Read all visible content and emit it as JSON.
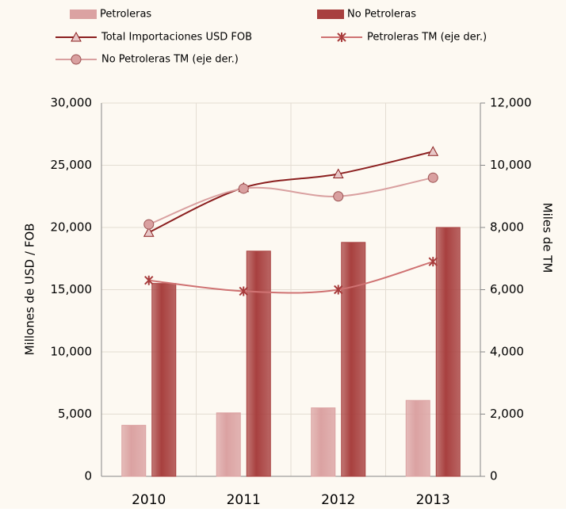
{
  "chart_data": {
    "type": "bar-line",
    "categories": [
      "2010",
      "2011",
      "2012",
      "2013"
    ],
    "series": [
      {
        "name": "Petroleras",
        "type": "bar",
        "color": "#dba2a2",
        "values": [
          4100,
          5100,
          5500,
          6100
        ]
      },
      {
        "name": "No Petroleras",
        "type": "bar",
        "color": "#a8403f",
        "values": [
          15500,
          18100,
          18800,
          20000
        ]
      },
      {
        "name": "Total Importaciones USD FOB",
        "type": "line",
        "marker": "triangle",
        "color": "#8b1f1f",
        "values": [
          19600,
          23200,
          24300,
          26100
        ]
      },
      {
        "name": "Petroleras TM (eje der.)",
        "type": "line",
        "marker": "x",
        "axis": "y2",
        "color": "#cf7272",
        "values": [
          6300,
          5950,
          6000,
          6900
        ]
      },
      {
        "name": "No Petroleras TM (eje der.)",
        "type": "line",
        "marker": "circle",
        "axis": "y2",
        "color": "#d9a0a0",
        "values": [
          8100,
          9250,
          9000,
          9600
        ]
      }
    ],
    "y_label": "Millones de USD / FOB",
    "y2_label": "Miles de  TM",
    "ylim": [
      0,
      30000
    ],
    "yticks": [
      0,
      {
        "value": 5000,
        "label": "5,000"
      },
      {
        "value": 10000,
        "label": "10,000"
      },
      {
        "value": 15000,
        "label": "15,000"
      },
      {
        "value": 20000,
        "label": "20,000"
      },
      {
        "value": 25000,
        "label": "25,000"
      },
      {
        "value": 30000,
        "label": "30,000"
      }
    ],
    "y2lim": [
      0,
      12000
    ],
    "y2ticks": [
      0,
      {
        "value": 2000,
        "label": "2,000"
      },
      {
        "value": 4000,
        "label": "4,000"
      },
      {
        "value": 6000,
        "label": "6,000"
      },
      {
        "value": 8000,
        "label": "8,000"
      },
      {
        "value": 10000,
        "label": "10,000"
      },
      {
        "value": 12000,
        "label": "12,000"
      }
    ],
    "grid": true
  }
}
